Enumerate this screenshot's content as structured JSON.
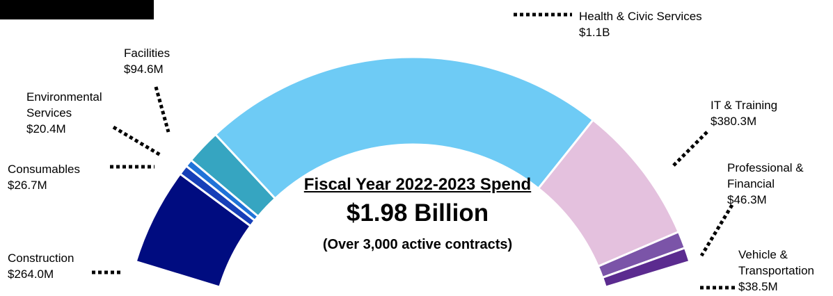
{
  "chart_data": {
    "type": "donut",
    "title": "Fiscal Year 2022-2023 Spend",
    "total_label": "$1.98 Billion",
    "subtitle": "(Over 3,000 active contracts)",
    "unit": "USD",
    "segments": [
      {
        "name": "Construction",
        "value_label": "$264.0M",
        "value_millions": 264.0,
        "color": "#000c80"
      },
      {
        "name": "Consumables",
        "value_label": "$26.7M",
        "value_millions": 26.7,
        "color": "#163fb8"
      },
      {
        "name": "Environmental Services",
        "name_lines": [
          "Environmental",
          "Services"
        ],
        "value_label": "$20.4M",
        "value_millions": 20.4,
        "color": "#1f73d8"
      },
      {
        "name": "Facilities",
        "value_label": "$94.6M",
        "value_millions": 94.6,
        "color": "#36a5c1"
      },
      {
        "name": "Health & Civic Services",
        "value_label": "$1.1B",
        "value_millions": 1100,
        "color": "#6ecbf5"
      },
      {
        "name": "IT & Training",
        "value_label": "$380.3M",
        "value_millions": 380.3,
        "color": "#e4c1de"
      },
      {
        "name": "Professional & Financial",
        "name_lines": [
          "Professional &",
          "Financial"
        ],
        "value_label": "$46.3M",
        "value_millions": 46.3,
        "color": "#7b54a8"
      },
      {
        "name": "Vehicle & Transportation",
        "name_lines": [
          "Vehicle &",
          "Transportation"
        ],
        "value_label": "$38.5M",
        "value_millions": 38.5,
        "color": "#5b2b8f"
      }
    ]
  }
}
